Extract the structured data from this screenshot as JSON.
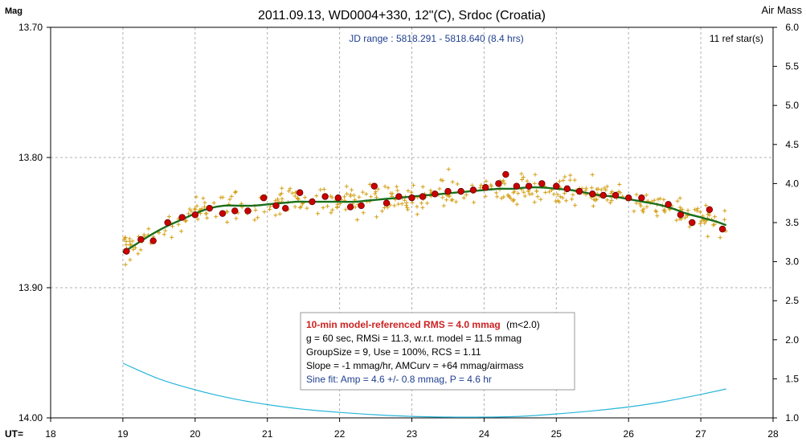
{
  "header": {
    "title": "2011.09.13, WD0004+330, 12\"(C), Srdoc (Croatia)",
    "left_axis_label": "Mag",
    "right_axis_label": "Air Mass",
    "x_prefix": "UT="
  },
  "annotations": {
    "jd_range": "JD range : 5818.291 - 5818.640 (8.4 hrs)",
    "ref_stars": "11 ref star(s)"
  },
  "stats_box": {
    "line1_bold": "10-min model-referenced RMS = 4.0 mmag",
    "line1_suffix": "(m<2.0)",
    "line2": "g = 60 sec, RMSi = 11.3, w.r.t. model = 11.5 mmag",
    "line3": "GroupSize = 9, Use = 100%, RCS = 1.11",
    "line4": "Slope = -1 mmag/hr, AMCurv = +64 mmag/airmass",
    "line5": "Sine fit: Amp = 4.6 +/- 0.8 mmag, P = 4.6 hr"
  },
  "colors": {
    "raw_points": "#d4a017",
    "binned_points": "#cc0000",
    "model": "#1a6e1a",
    "airmass": "#29b6d9",
    "title_box_red": "#cc2222",
    "jd_text": "#1f3f8f",
    "sine_text": "#1f3f8f"
  },
  "chart_data": {
    "type": "scatter",
    "title": "2011.09.13, WD0004+330, 12\"(C), Srdoc (Croatia)",
    "xlabel": "UT=",
    "ylabel": "Mag",
    "y2label": "Air Mass",
    "xlim": [
      18,
      28
    ],
    "ylim": [
      13.7,
      14.0
    ],
    "y_inverted": true,
    "y2lim": [
      1.0,
      6.0
    ],
    "x_ticks": [
      "18",
      "19",
      "20",
      "21",
      "22",
      "23",
      "24",
      "25",
      "26",
      "27",
      "28"
    ],
    "y_ticks": [
      "13.70",
      "13.80",
      "13.90",
      "14.00"
    ],
    "y2_ticks": [
      "1.0",
      "1.5",
      "2.0",
      "2.5",
      "3.0",
      "3.5",
      "4.0",
      "4.5",
      "5.0",
      "5.5",
      "6.0"
    ],
    "grid": true,
    "series": [
      {
        "kind": "binned",
        "x": [
          19.05,
          19.25,
          19.42,
          19.62,
          19.82,
          20.0,
          20.2,
          20.38,
          20.55,
          20.73,
          20.95,
          21.12,
          21.25,
          21.45,
          21.62,
          21.8,
          21.98,
          22.15,
          22.3,
          22.48,
          22.65,
          22.82,
          23.0,
          23.15,
          23.32,
          23.5,
          23.68,
          23.85,
          24.02,
          24.2,
          24.3,
          24.45,
          24.62,
          24.8,
          25.0,
          25.15,
          25.32,
          25.5,
          25.65,
          25.82,
          26.0,
          26.18,
          26.55,
          26.72,
          26.88,
          27.12,
          27.3
        ],
        "y": [
          13.872,
          13.863,
          13.864,
          13.85,
          13.846,
          13.844,
          13.839,
          13.843,
          13.841,
          13.841,
          13.831,
          13.837,
          13.839,
          13.827,
          13.834,
          13.83,
          13.831,
          13.838,
          13.837,
          13.822,
          13.835,
          13.83,
          13.831,
          13.83,
          13.828,
          13.826,
          13.826,
          13.825,
          13.823,
          13.82,
          13.813,
          13.822,
          13.822,
          13.82,
          13.822,
          13.824,
          13.826,
          13.828,
          13.829,
          13.829,
          13.831,
          13.831,
          13.836,
          13.844,
          13.85,
          13.84,
          13.855
        ]
      },
      {
        "kind": "model",
        "x": [
          19.0,
          19.2,
          19.4,
          19.6,
          19.8,
          20.0,
          20.2,
          20.4,
          20.6,
          20.8,
          21.0,
          21.2,
          21.4,
          21.6,
          21.8,
          22.0,
          22.2,
          22.4,
          22.6,
          22.8,
          23.0,
          23.2,
          23.4,
          23.6,
          23.8,
          24.0,
          24.2,
          24.4,
          24.6,
          24.8,
          25.0,
          25.2,
          25.4,
          25.6,
          25.8,
          26.0,
          26.2,
          26.4,
          26.6,
          26.8,
          27.0,
          27.2,
          27.35
        ],
        "y": [
          13.873,
          13.866,
          13.859,
          13.853,
          13.848,
          13.843,
          13.839,
          13.837,
          13.837,
          13.837,
          13.836,
          13.835,
          13.834,
          13.834,
          13.834,
          13.834,
          13.834,
          13.833,
          13.832,
          13.831,
          13.83,
          13.829,
          13.828,
          13.827,
          13.826,
          13.825,
          13.824,
          13.824,
          13.823,
          13.823,
          13.824,
          13.825,
          13.827,
          13.829,
          13.83,
          13.832,
          13.834,
          13.836,
          13.839,
          13.843,
          13.846,
          13.849,
          13.852
        ]
      },
      {
        "kind": "airmass",
        "x": [
          19.0,
          19.5,
          20.0,
          20.5,
          21.0,
          21.5,
          22.0,
          22.5,
          23.0,
          23.5,
          24.0,
          24.5,
          25.0,
          25.5,
          26.0,
          26.5,
          27.0,
          27.35
        ],
        "y": [
          1.7,
          1.5,
          1.36,
          1.25,
          1.17,
          1.11,
          1.07,
          1.04,
          1.02,
          1.01,
          1.01,
          1.02,
          1.05,
          1.09,
          1.14,
          1.21,
          1.3,
          1.37
        ]
      }
    ]
  }
}
